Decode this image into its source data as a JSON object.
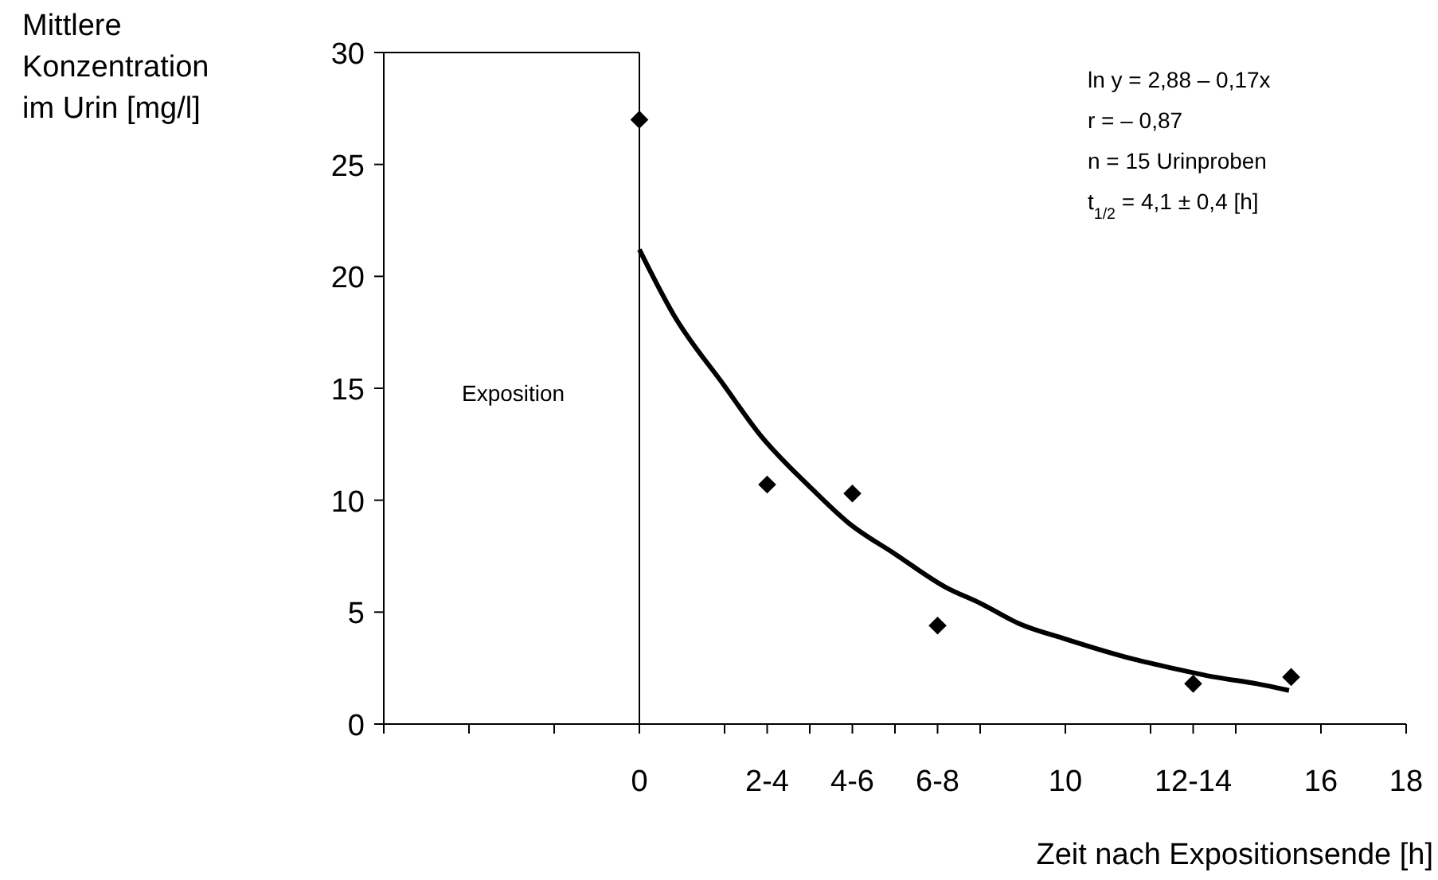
{
  "chart_data": {
    "type": "scatter",
    "xlabel": "Zeit nach Expositionsende [h]",
    "ylabel": "Mittlere Konzentration im Urin [mg/l]",
    "xlim": [
      -6,
      18
    ],
    "ylim": [
      0,
      30
    ],
    "xticks": [
      {
        "value": -6,
        "label": null
      },
      {
        "value": -4,
        "label": null
      },
      {
        "value": -2,
        "label": null
      },
      0,
      {
        "value": 2,
        "label": null
      },
      {
        "value": 3,
        "label": "2-4"
      },
      {
        "value": 4,
        "label": null
      },
      {
        "value": 5,
        "label": "4-6"
      },
      {
        "value": 6,
        "label": null
      },
      {
        "value": 7,
        "label": "6-8"
      },
      {
        "value": 8,
        "label": null
      },
      10,
      {
        "value": 12,
        "label": null
      },
      {
        "value": 13,
        "label": "12-14"
      },
      {
        "value": 14,
        "label": null
      },
      16,
      18
    ],
    "yticks": [
      0,
      5,
      10,
      15,
      20,
      25,
      30
    ],
    "grid": false,
    "series": [
      {
        "color": "#000000",
        "marker": "diamond",
        "x": [
          0,
          3,
          5,
          7,
          13,
          15.3
        ],
        "values": [
          27,
          10.7,
          10.3,
          4.4,
          1.8,
          2.1
        ]
      },
      {
        "type": "line",
        "color": "#000000",
        "marker": "none",
        "line_style": "solid",
        "x": [
          0,
          0.8,
          2,
          2.8,
          4,
          4.9,
          6,
          7.2,
          8,
          8.9,
          10,
          11.6,
          12.5,
          13.5,
          14.5,
          15.25
        ],
        "values": [
          21.2,
          18.3,
          15.1,
          13.0,
          10.6,
          9.0,
          7.6,
          6.1,
          5.4,
          4.5,
          3.8,
          2.9,
          2.5,
          2.1,
          1.8,
          1.5
        ]
      }
    ],
    "ref_lines": [
      {
        "axis": "x",
        "value": 0,
        "color": "#000000"
      }
    ],
    "annotations": [
      "Exposition",
      "ln y = 2,88 – 0,17x",
      "r = – 0,87",
      "n = 15 Urinproben",
      "t$_{1/2}$ = 4,1 ± 0,4 [h]"
    ]
  }
}
